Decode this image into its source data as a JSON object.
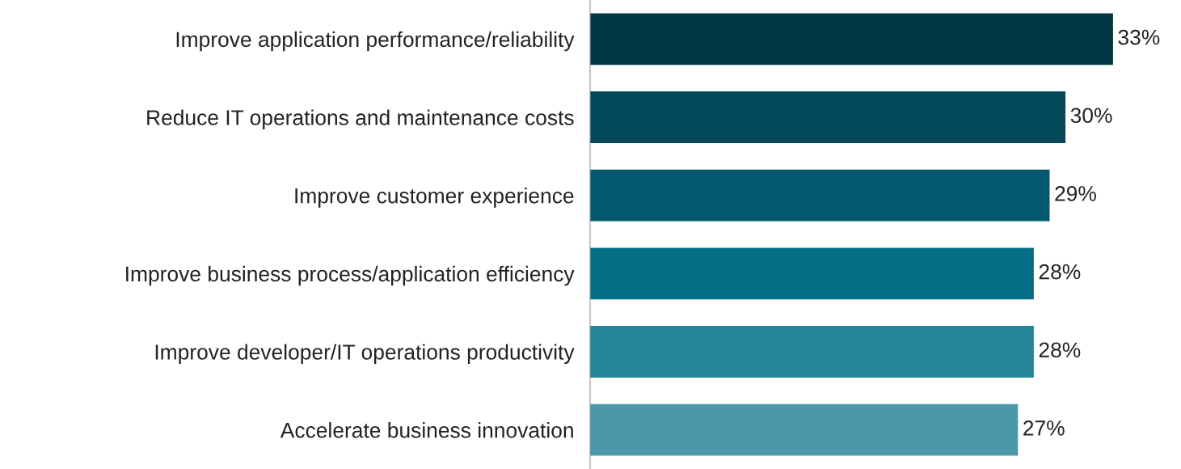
{
  "chart_data": {
    "type": "bar",
    "orientation": "horizontal",
    "categories": [
      "Improve application performance/reliability",
      "Reduce IT operations and maintenance costs",
      "Improve customer experience",
      "Improve business process/application efficiency",
      "Improve developer/IT operations productivity",
      "Accelerate business innovation"
    ],
    "values": [
      33,
      30,
      29,
      28,
      28,
      27
    ],
    "colors": [
      "#023845",
      "#02495a",
      "#035a70",
      "#056e87",
      "#25839a",
      "#4b97aa"
    ],
    "value_labels": [
      "33%",
      "30%",
      "29%",
      "28%",
      "28%",
      "27%"
    ],
    "grid": false,
    "legend": false,
    "tick_labels": "y"
  }
}
